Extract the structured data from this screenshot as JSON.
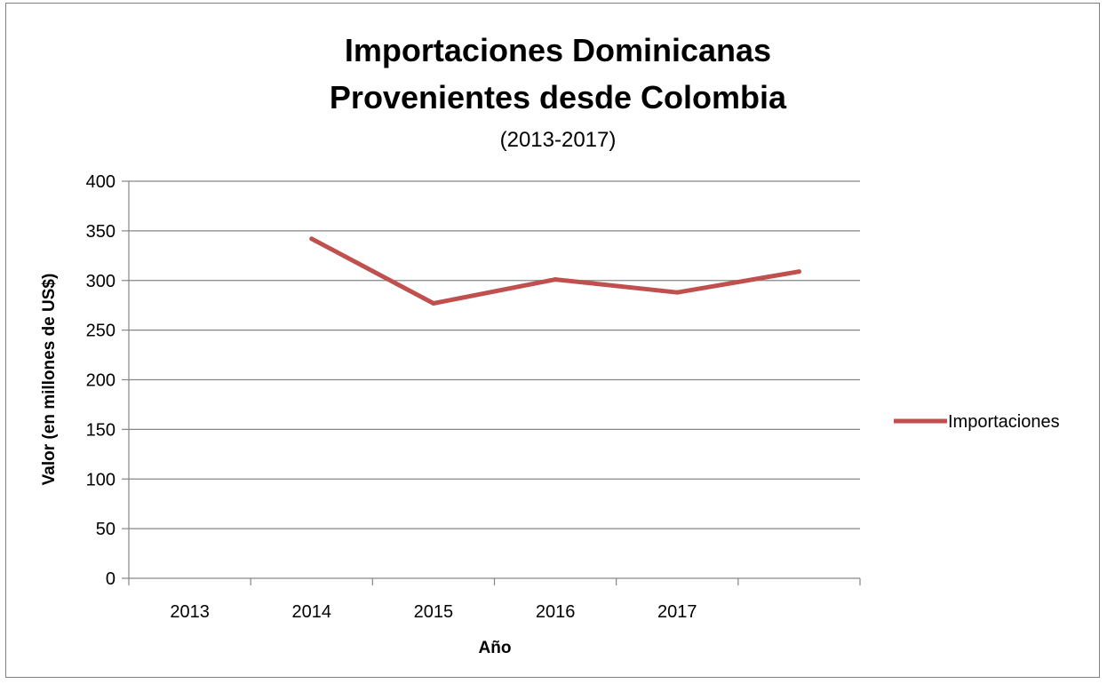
{
  "chart_data": {
    "type": "line",
    "title": "Importaciones Dominicanas Provenientes desde Colombia",
    "title_lines": [
      "Importaciones Dominicanas",
      "Provenientes desde Colombia"
    ],
    "subtitle": "(2013-2017)",
    "xlabel": "Año",
    "ylabel": "Valor (en millones de US$)",
    "categories": [
      "2013",
      "2014",
      "2015",
      "2016",
      "2017"
    ],
    "ylim": [
      0,
      400
    ],
    "yticks": [
      0,
      50,
      100,
      150,
      200,
      250,
      300,
      350,
      400
    ],
    "grid": true,
    "legend": "right",
    "series": [
      {
        "name": "Importaciones",
        "color": "#c0504d",
        "x_positions": [
          1,
          2,
          3,
          4,
          5
        ],
        "values": [
          342,
          277,
          301,
          288,
          309
        ]
      }
    ]
  }
}
